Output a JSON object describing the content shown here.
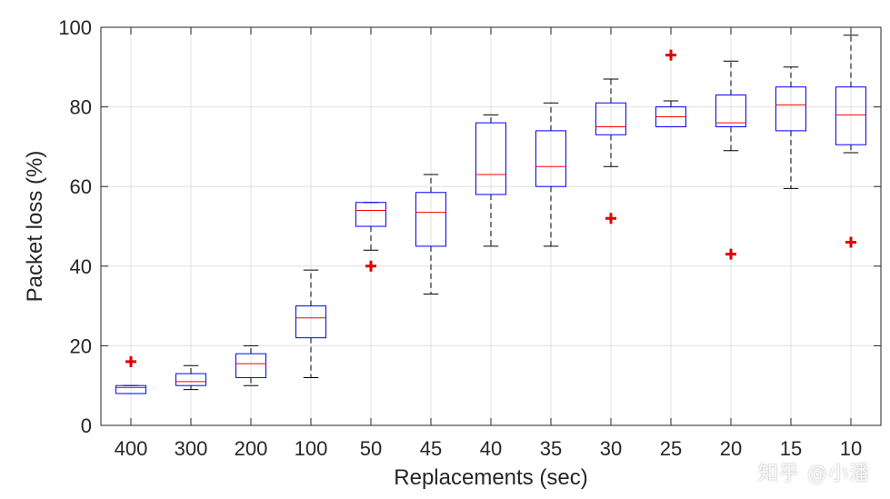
{
  "chart_data": {
    "type": "box",
    "title": "",
    "xlabel": "Replacements (sec)",
    "ylabel": "Packet loss (%)",
    "ylim": [
      0,
      100
    ],
    "yticks": [
      0,
      20,
      40,
      60,
      80,
      100
    ],
    "grid": true,
    "categories": [
      "400",
      "300",
      "200",
      "100",
      "50",
      "45",
      "40",
      "35",
      "30",
      "25",
      "20",
      "15",
      "10"
    ],
    "boxes": [
      {
        "category": "400",
        "whisker_low": 8,
        "q1": 8,
        "median": 9.5,
        "q3": 10,
        "whisker_high": 10,
        "outliers": [
          16
        ]
      },
      {
        "category": "300",
        "whisker_low": 9,
        "q1": 10,
        "median": 11,
        "q3": 13,
        "whisker_high": 15,
        "outliers": []
      },
      {
        "category": "200",
        "whisker_low": 10,
        "q1": 12,
        "median": 15.5,
        "q3": 18,
        "whisker_high": 20,
        "outliers": []
      },
      {
        "category": "100",
        "whisker_low": 12,
        "q1": 22,
        "median": 27,
        "q3": 30,
        "whisker_high": 39,
        "outliers": []
      },
      {
        "category": "50",
        "whisker_low": 44,
        "q1": 50,
        "median": 54,
        "q3": 56,
        "whisker_high": 56,
        "outliers": [
          40
        ]
      },
      {
        "category": "45",
        "whisker_low": 33,
        "q1": 45,
        "median": 53.5,
        "q3": 58.5,
        "whisker_high": 63,
        "outliers": []
      },
      {
        "category": "40",
        "whisker_low": 45,
        "q1": 58,
        "median": 63,
        "q3": 76,
        "whisker_high": 78,
        "outliers": []
      },
      {
        "category": "35",
        "whisker_low": 45,
        "q1": 60,
        "median": 65,
        "q3": 74,
        "whisker_high": 81,
        "outliers": []
      },
      {
        "category": "30",
        "whisker_low": 65,
        "q1": 73,
        "median": 75,
        "q3": 81,
        "whisker_high": 87,
        "outliers": [
          52
        ]
      },
      {
        "category": "25",
        "whisker_low": 75,
        "q1": 75,
        "median": 77.5,
        "q3": 80,
        "whisker_high": 81.5,
        "outliers": [
          93
        ]
      },
      {
        "category": "20",
        "whisker_low": 69,
        "q1": 75,
        "median": 76,
        "q3": 83,
        "whisker_high": 91.5,
        "outliers": [
          43
        ]
      },
      {
        "category": "15",
        "whisker_low": 59.5,
        "q1": 74,
        "median": 80.5,
        "q3": 85,
        "whisker_high": 90,
        "outliers": []
      },
      {
        "category": "10",
        "whisker_low": 68.5,
        "q1": 70.5,
        "median": 78,
        "q3": 85,
        "whisker_high": 98,
        "outliers": [
          46
        ]
      }
    ],
    "colors": {
      "box": "#0000ff",
      "median": "#ff0000",
      "whisker": "#000000",
      "outlier": "#e00000",
      "grid": "#e0e0e0",
      "axis": "#262626"
    }
  },
  "watermark": "知乎 @小潘"
}
